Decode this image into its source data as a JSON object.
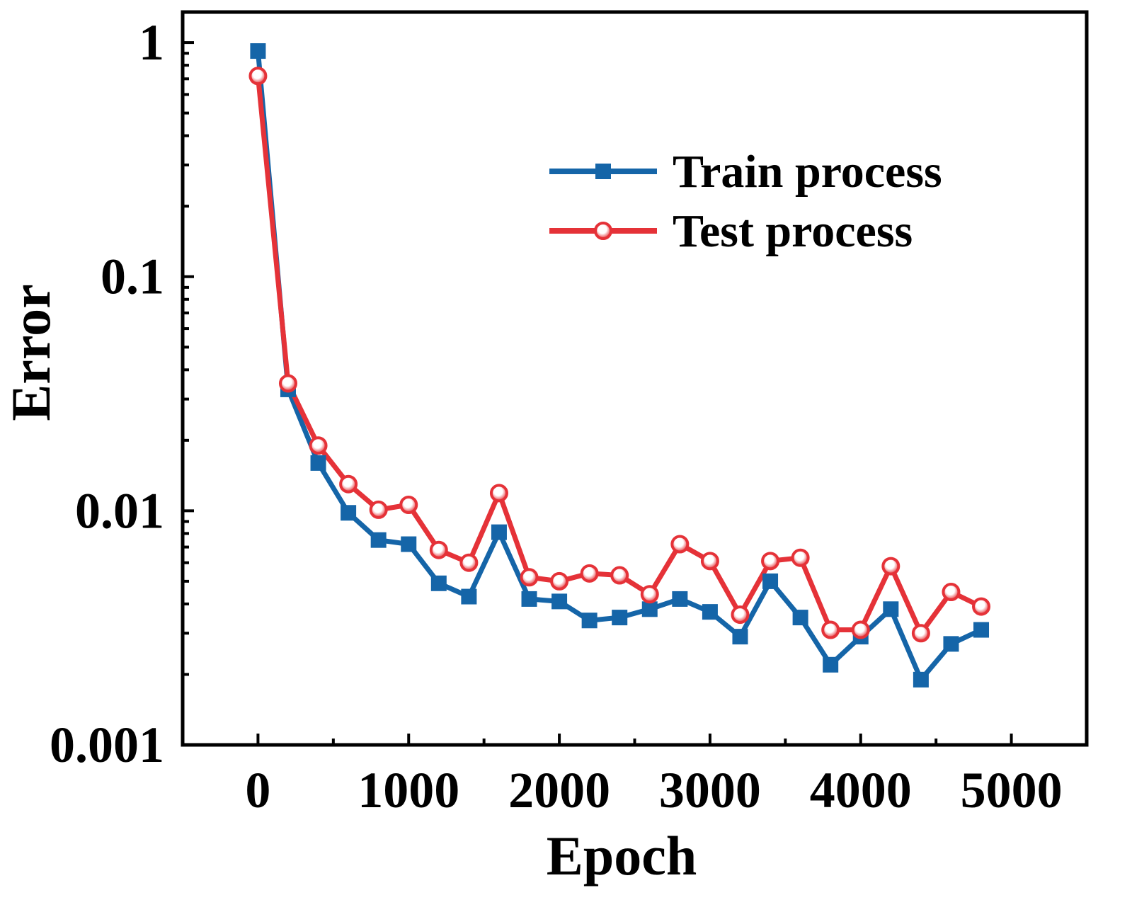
{
  "chart_data": {
    "type": "line",
    "title": "",
    "xlabel": "Epoch",
    "ylabel": "Error",
    "xlim": [
      -500,
      5500
    ],
    "ylim": [
      0.001,
      1.35
    ],
    "yscale": "log",
    "x_ticks": [
      0,
      1000,
      2000,
      3000,
      4000,
      5000
    ],
    "x_tick_labels": [
      "0",
      "1000",
      "2000",
      "3000",
      "4000",
      "5000"
    ],
    "y_ticks": [
      0.001,
      0.01,
      0.1,
      1
    ],
    "y_tick_labels": [
      "0.001",
      "0.01",
      "0.1",
      "1"
    ],
    "grid": false,
    "legend_position": "top-right",
    "x": [
      0,
      200,
      400,
      600,
      800,
      1000,
      1200,
      1400,
      1600,
      1800,
      2000,
      2200,
      2400,
      2600,
      2800,
      3000,
      3200,
      3400,
      3600,
      3800,
      4000,
      4200,
      4400,
      4600,
      4800
    ],
    "series": [
      {
        "name": "Train process",
        "color": "#1565a8",
        "marker": "square",
        "values": [
          0.92,
          0.033,
          0.016,
          0.0098,
          0.0075,
          0.0072,
          0.0049,
          0.0043,
          0.0081,
          0.0042,
          0.0041,
          0.0034,
          0.0035,
          0.0038,
          0.0042,
          0.0037,
          0.0029,
          0.005,
          0.0035,
          0.0022,
          0.0029,
          0.0038,
          0.0019,
          0.0027,
          0.0031
        ]
      },
      {
        "name": "Test process",
        "color": "#e53238",
        "marker": "circle",
        "values": [
          0.72,
          0.035,
          0.019,
          0.013,
          0.0101,
          0.0106,
          0.0068,
          0.006,
          0.0119,
          0.0052,
          0.005,
          0.0054,
          0.0053,
          0.0044,
          0.0072,
          0.0061,
          0.0036,
          0.0061,
          0.0063,
          0.0031,
          0.0031,
          0.0058,
          0.003,
          0.0045,
          0.0039
        ]
      }
    ]
  }
}
